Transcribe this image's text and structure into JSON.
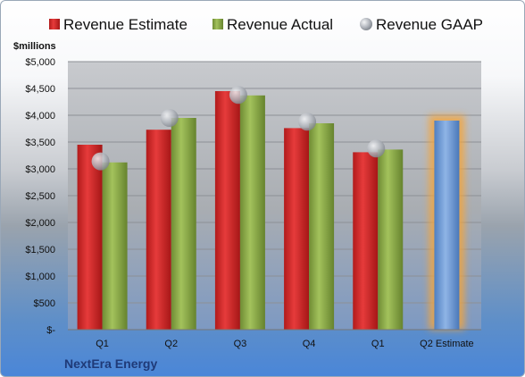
{
  "chart_data": {
    "type": "bar",
    "title": "",
    "company": "NextEra Energy",
    "unit_label": "$millions",
    "categories": [
      "Q1",
      "Q2",
      "Q3",
      "Q4",
      "Q1",
      "Q2 Estimate"
    ],
    "series": [
      {
        "name": "Revenue Estimate",
        "color": "#d42a2a",
        "values": [
          3450,
          3730,
          4450,
          3760,
          3310,
          null
        ]
      },
      {
        "name": "Revenue Actual",
        "color": "#8fb04a",
        "values": [
          3120,
          3950,
          4370,
          3850,
          3360,
          null
        ]
      },
      {
        "name": "Revenue GAAP",
        "color": "#b8bcc4",
        "values": [
          3140,
          3950,
          4380,
          3880,
          3380,
          null
        ]
      }
    ],
    "estimate": {
      "category": "Q2 Estimate",
      "value": 3900,
      "color": "#6e9bd6",
      "glow": "#f5a53a"
    },
    "ylim": [
      0,
      5000
    ],
    "yticks": [
      "$-",
      "$500",
      "$1,000",
      "$1,500",
      "$2,000",
      "$2,500",
      "$3,000",
      "$3,500",
      "$4,000",
      "$4,500",
      "$5,000"
    ],
    "ytick_values": [
      0,
      500,
      1000,
      1500,
      2000,
      2500,
      3000,
      3500,
      4000,
      4500,
      5000
    ],
    "grid": true,
    "legend": "top"
  }
}
